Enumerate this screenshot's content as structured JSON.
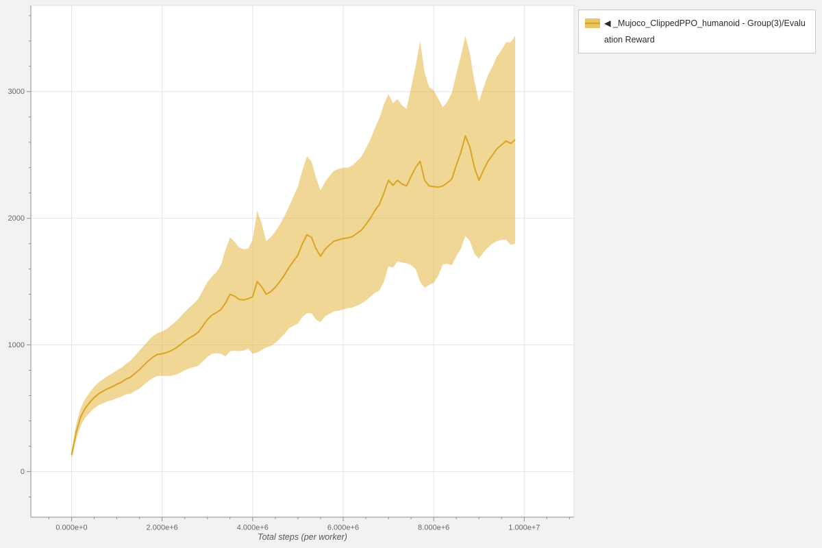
{
  "legend": {
    "label": "◀ _Mujoco_ClippedPPO_humanoid - Group(3)/Evaluation Reward"
  },
  "axes": {
    "x_title": "Total steps (per worker)",
    "x_ticks": [
      {
        "value": 0,
        "label": "0.000e+0"
      },
      {
        "value": 2000000,
        "label": "2.000e+6"
      },
      {
        "value": 4000000,
        "label": "4.000e+6"
      },
      {
        "value": 6000000,
        "label": "6.000e+6"
      },
      {
        "value": 8000000,
        "label": "8.000e+6"
      },
      {
        "value": 10000000,
        "label": "1.000e+7"
      }
    ],
    "y_ticks": [
      {
        "value": 0,
        "label": "0"
      },
      {
        "value": 1000,
        "label": "1000"
      },
      {
        "value": 2000,
        "label": "2000"
      },
      {
        "value": 3000,
        "label": "3000"
      }
    ]
  },
  "chart_data": {
    "type": "line",
    "title": "",
    "xlabel": "Total steps (per worker)",
    "ylabel": "",
    "xlim": [
      -900000,
      11100000
    ],
    "ylim": [
      -360,
      3680
    ],
    "grid": true,
    "legend_position": "top-right-outside",
    "x_unit": 1000000,
    "series": [
      {
        "name": "_Mujoco_ClippedPPO_humanoid - Group(3)/Evaluation Reward",
        "color": "#d9a521",
        "band_color": "#e6b73e",
        "band_opacity": 0.55,
        "x": [
          0,
          0.1,
          0.2,
          0.3,
          0.4,
          0.5,
          0.6,
          0.7,
          0.8,
          0.9,
          1,
          1.1,
          1.2,
          1.3,
          1.4,
          1.5,
          1.6,
          1.7,
          1.8,
          1.9,
          2,
          2.1,
          2.2,
          2.3,
          2.4,
          2.5,
          2.6,
          2.7,
          2.8,
          2.9,
          3,
          3.1,
          3.2,
          3.3,
          3.4,
          3.5,
          3.6,
          3.7,
          3.8,
          3.9,
          4,
          4.1,
          4.2,
          4.3,
          4.4,
          4.5,
          4.6,
          4.7,
          4.8,
          4.9,
          5,
          5.1,
          5.2,
          5.3,
          5.4,
          5.5,
          5.6,
          5.7,
          5.8,
          5.9,
          6,
          6.1,
          6.2,
          6.3,
          6.4,
          6.5,
          6.6,
          6.7,
          6.8,
          6.9,
          7,
          7.1,
          7.2,
          7.3,
          7.4,
          7.5,
          7.6,
          7.7,
          7.8,
          7.9,
          8,
          8.1,
          8.2,
          8.3,
          8.4,
          8.5,
          8.6,
          8.7,
          8.8,
          8.9,
          9,
          9.1,
          9.2,
          9.3,
          9.4,
          9.5,
          9.6,
          9.7,
          9.8
        ],
        "mean": [
          130,
          310,
          430,
          500,
          545,
          585,
          615,
          635,
          655,
          670,
          690,
          705,
          730,
          745,
          775,
          805,
          840,
          875,
          905,
          925,
          930,
          940,
          955,
          975,
          1000,
          1030,
          1055,
          1075,
          1100,
          1150,
          1200,
          1235,
          1255,
          1280,
          1330,
          1400,
          1385,
          1360,
          1355,
          1365,
          1380,
          1500,
          1460,
          1400,
          1420,
          1455,
          1500,
          1550,
          1610,
          1660,
          1710,
          1800,
          1870,
          1850,
          1760,
          1700,
          1755,
          1790,
          1820,
          1830,
          1840,
          1845,
          1855,
          1880,
          1905,
          1950,
          2000,
          2060,
          2110,
          2200,
          2300,
          2260,
          2300,
          2270,
          2255,
          2330,
          2400,
          2450,
          2300,
          2255,
          2250,
          2245,
          2255,
          2280,
          2310,
          2420,
          2520,
          2650,
          2560,
          2400,
          2300,
          2380,
          2450,
          2500,
          2550,
          2580,
          2610,
          2590,
          2620
        ],
        "band": [
          30,
          60,
          70,
          75,
          80,
          85,
          90,
          95,
          100,
          105,
          110,
          115,
          120,
          130,
          140,
          150,
          155,
          160,
          165,
          170,
          175,
          185,
          200,
          210,
          220,
          230,
          240,
          250,
          265,
          280,
          295,
          305,
          320,
          350,
          420,
          450,
          430,
          410,
          400,
          395,
          450,
          560,
          500,
          420,
          430,
          440,
          450,
          465,
          480,
          510,
          540,
          580,
          620,
          600,
          560,
          520,
          530,
          545,
          555,
          560,
          560,
          555,
          560,
          570,
          580,
          600,
          620,
          650,
          680,
          700,
          680,
          650,
          640,
          620,
          610,
          700,
          800,
          950,
          850,
          780,
          760,
          700,
          620,
          640,
          680,
          720,
          760,
          790,
          740,
          680,
          620,
          650,
          680,
          700,
          730,
          750,
          780,
          800,
          820
        ]
      }
    ]
  }
}
